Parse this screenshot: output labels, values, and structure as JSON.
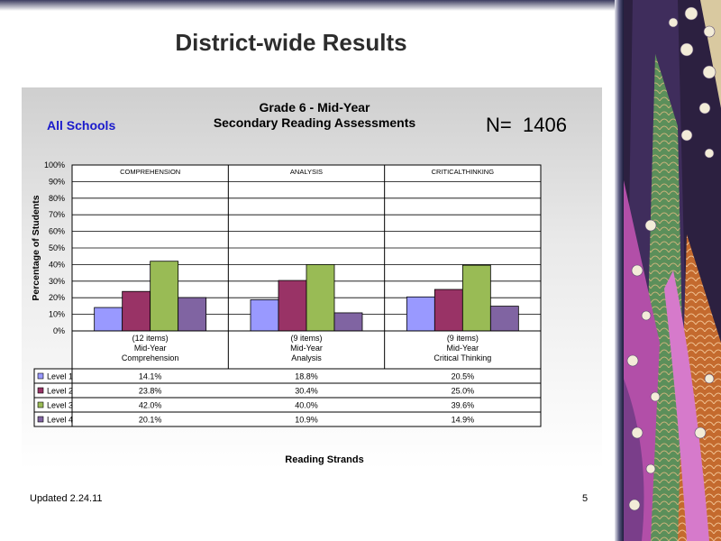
{
  "slide": {
    "title": "District-wide Results",
    "footer_left": "Updated  2.24.11",
    "footer_right": "5"
  },
  "header": {
    "scope": "All Schools",
    "n_label": "N=",
    "n_value": "1406"
  },
  "chart_data": {
    "type": "bar",
    "title": "Grade 6 - Mid-Year",
    "subtitle": "Secondary Reading Assessments",
    "ylabel": "Percentage of Students",
    "xlabel": "Reading Strands",
    "ylim": [
      0,
      100
    ],
    "yticks": [
      "0%",
      "10%",
      "20%",
      "30%",
      "40%",
      "50%",
      "60%",
      "70%",
      "80%",
      "90%",
      "100%"
    ],
    "grid": true,
    "panel_labels": [
      "COMPREHENSION",
      "ANALYSIS",
      "CRITICALTHINKING"
    ],
    "categories": [
      [
        "(12 items)",
        "Mid-Year",
        "Comprehension"
      ],
      [
        "(9 items)",
        "Mid-Year",
        "Analysis"
      ],
      [
        "(9 items)",
        "Mid-Year",
        "Critical Thinking"
      ]
    ],
    "series": [
      {
        "name": "Level 1",
        "color": "#9999ff",
        "values": [
          14.1,
          18.8,
          20.5
        ],
        "labels": [
          "14.1%",
          "18.8%",
          "20.5%"
        ]
      },
      {
        "name": "Level 2",
        "color": "#993366",
        "values": [
          23.8,
          30.4,
          25.0
        ],
        "labels": [
          "23.8%",
          "30.4%",
          "25.0%"
        ]
      },
      {
        "name": "Level 3",
        "color": "#99bb55",
        "values": [
          42.0,
          40.0,
          39.6
        ],
        "labels": [
          "42.0%",
          "40.0%",
          "39.6%"
        ]
      },
      {
        "name": "Level 4",
        "color": "#8064a2",
        "values": [
          20.1,
          10.9,
          14.9
        ],
        "labels": [
          "20.1%",
          "10.9%",
          "14.9%"
        ]
      }
    ]
  }
}
